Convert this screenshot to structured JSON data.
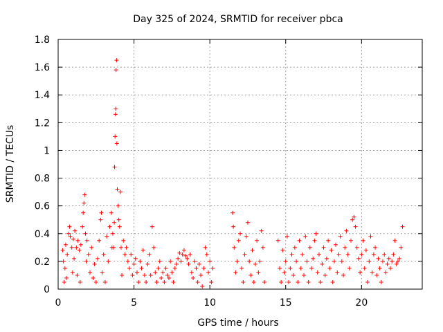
{
  "chart_data": {
    "type": "scatter",
    "title": "Day 325 of 2024, SRMTID for receiver pbca",
    "xlabel": "GPS time / hours",
    "ylabel": "SRMTID / TECUs",
    "xlim": [
      0,
      24
    ],
    "ylim": [
      0,
      1.8
    ],
    "xticks": [
      "0",
      "5",
      "10",
      "15",
      "20"
    ],
    "yticks": [
      "0",
      "0.2",
      "0.4",
      "0.6",
      "0.8",
      "1",
      "1.2",
      "1.4",
      "1.6",
      "1.8"
    ],
    "grid": true,
    "marker": "+",
    "color": "#ff0000",
    "series": [
      {
        "name": "pbca",
        "points": [
          [
            0.3,
            0.28
          ],
          [
            0.35,
            0.2
          ],
          [
            0.4,
            0.05
          ],
          [
            0.45,
            0.15
          ],
          [
            0.5,
            0.32
          ],
          [
            0.55,
            0.08
          ],
          [
            0.6,
            0.25
          ],
          [
            0.7,
            0.4
          ],
          [
            0.75,
            0.45
          ],
          [
            0.8,
            0.38
          ],
          [
            0.9,
            0.3
          ],
          [
            0.95,
            0.12
          ],
          [
            1.0,
            0.36
          ],
          [
            1.05,
            0.22
          ],
          [
            1.1,
            0.42
          ],
          [
            1.2,
            0.3
          ],
          [
            1.25,
            0.1
          ],
          [
            1.3,
            0.35
          ],
          [
            1.4,
            0.28
          ],
          [
            1.45,
            0.05
          ],
          [
            1.5,
            0.32
          ],
          [
            1.6,
            0.45
          ],
          [
            1.65,
            0.55
          ],
          [
            1.7,
            0.62
          ],
          [
            1.75,
            0.68
          ],
          [
            1.8,
            0.4
          ],
          [
            1.85,
            0.2
          ],
          [
            1.9,
            0.35
          ],
          [
            2.0,
            0.25
          ],
          [
            2.1,
            0.12
          ],
          [
            2.2,
            0.3
          ],
          [
            2.3,
            0.08
          ],
          [
            2.4,
            0.18
          ],
          [
            2.5,
            0.05
          ],
          [
            2.6,
            0.22
          ],
          [
            2.7,
            0.35
          ],
          [
            2.8,
            0.5
          ],
          [
            2.85,
            0.55
          ],
          [
            2.9,
            0.12
          ],
          [
            3.0,
            0.25
          ],
          [
            3.1,
            0.05
          ],
          [
            3.2,
            0.38
          ],
          [
            3.3,
            0.2
          ],
          [
            3.4,
            0.45
          ],
          [
            3.5,
            0.55
          ],
          [
            3.55,
            0.3
          ],
          [
            3.6,
            0.4
          ],
          [
            3.65,
            0.3
          ],
          [
            3.7,
            0.48
          ],
          [
            3.72,
            0.88
          ],
          [
            3.75,
            1.1
          ],
          [
            3.78,
            1.26
          ],
          [
            3.8,
            1.3
          ],
          [
            3.82,
            1.58
          ],
          [
            3.85,
            1.65
          ],
          [
            3.87,
            1.05
          ],
          [
            3.9,
            0.72
          ],
          [
            3.95,
            0.6
          ],
          [
            4.0,
            0.5
          ],
          [
            4.05,
            0.45
          ],
          [
            4.1,
            0.7
          ],
          [
            4.15,
            0.3
          ],
          [
            4.2,
            0.1
          ],
          [
            4.3,
            0.35
          ],
          [
            4.4,
            0.25
          ],
          [
            4.5,
            0.3
          ],
          [
            4.6,
            0.2
          ],
          [
            4.7,
            0.15
          ],
          [
            4.8,
            0.25
          ],
          [
            4.9,
            0.1
          ],
          [
            5.0,
            0.18
          ],
          [
            5.1,
            0.22
          ],
          [
            5.2,
            0.12
          ],
          [
            5.3,
            0.05
          ],
          [
            5.4,
            0.2
          ],
          [
            5.5,
            0.15
          ],
          [
            5.6,
            0.28
          ],
          [
            5.7,
            0.1
          ],
          [
            5.8,
            0.05
          ],
          [
            5.9,
            0.18
          ],
          [
            6.0,
            0.25
          ],
          [
            6.1,
            0.1
          ],
          [
            6.2,
            0.45
          ],
          [
            6.3,
            0.3
          ],
          [
            6.4,
            0.12
          ],
          [
            6.5,
            0.05
          ],
          [
            6.6,
            0.15
          ],
          [
            6.7,
            0.2
          ],
          [
            6.8,
            0.08
          ],
          [
            6.9,
            0.12
          ],
          [
            7.0,
            0.05
          ],
          [
            7.1,
            0.15
          ],
          [
            7.2,
            0.1
          ],
          [
            7.3,
            0.08
          ],
          [
            7.4,
            0.2
          ],
          [
            7.5,
            0.12
          ],
          [
            7.6,
            0.05
          ],
          [
            7.7,
            0.15
          ],
          [
            7.8,
            0.18
          ],
          [
            7.9,
            0.22
          ],
          [
            8.0,
            0.26
          ],
          [
            8.1,
            0.2
          ],
          [
            8.2,
            0.25
          ],
          [
            8.3,
            0.28
          ],
          [
            8.4,
            0.24
          ],
          [
            8.5,
            0.22
          ],
          [
            8.6,
            0.18
          ],
          [
            8.7,
            0.25
          ],
          [
            8.8,
            0.12
          ],
          [
            8.9,
            0.08
          ],
          [
            9.0,
            0.2
          ],
          [
            9.1,
            0.15
          ],
          [
            9.2,
            0.05
          ],
          [
            9.3,
            0.18
          ],
          [
            9.4,
            0.1
          ],
          [
            9.5,
            0.02
          ],
          [
            9.6,
            0.15
          ],
          [
            9.7,
            0.3
          ],
          [
            9.8,
            0.25
          ],
          [
            9.9,
            0.12
          ],
          [
            10.0,
            0.2
          ],
          [
            10.1,
            0.05
          ],
          [
            10.2,
            0.15
          ],
          [
            11.5,
            0.55
          ],
          [
            11.55,
            0.45
          ],
          [
            11.6,
            0.3
          ],
          [
            11.7,
            0.12
          ],
          [
            11.8,
            0.2
          ],
          [
            11.9,
            0.35
          ],
          [
            12.0,
            0.4
          ],
          [
            12.1,
            0.15
          ],
          [
            12.2,
            0.05
          ],
          [
            12.3,
            0.25
          ],
          [
            12.4,
            0.38
          ],
          [
            12.5,
            0.48
          ],
          [
            12.6,
            0.2
          ],
          [
            12.7,
            0.1
          ],
          [
            12.8,
            0.28
          ],
          [
            12.9,
            0.05
          ],
          [
            13.0,
            0.18
          ],
          [
            13.1,
            0.35
          ],
          [
            13.2,
            0.12
          ],
          [
            13.3,
            0.2
          ],
          [
            13.4,
            0.42
          ],
          [
            13.5,
            0.3
          ],
          [
            13.6,
            0.05
          ],
          [
            14.5,
            0.35
          ],
          [
            14.6,
            0.15
          ],
          [
            14.7,
            0.05
          ],
          [
            14.8,
            0.28
          ],
          [
            14.9,
            0.12
          ],
          [
            15.0,
            0.2
          ],
          [
            15.1,
            0.38
          ],
          [
            15.2,
            0.05
          ],
          [
            15.3,
            0.15
          ],
          [
            15.4,
            0.25
          ],
          [
            15.5,
            0.1
          ],
          [
            15.6,
            0.3
          ],
          [
            15.7,
            0.2
          ],
          [
            15.8,
            0.05
          ],
          [
            15.9,
            0.35
          ],
          [
            16.0,
            0.15
          ],
          [
            16.1,
            0.25
          ],
          [
            16.2,
            0.1
          ],
          [
            16.3,
            0.38
          ],
          [
            16.4,
            0.2
          ],
          [
            16.5,
            0.05
          ],
          [
            16.6,
            0.3
          ],
          [
            16.7,
            0.15
          ],
          [
            16.8,
            0.22
          ],
          [
            16.9,
            0.35
          ],
          [
            17.0,
            0.4
          ],
          [
            17.1,
            0.12
          ],
          [
            17.2,
            0.25
          ],
          [
            17.3,
            0.05
          ],
          [
            17.4,
            0.18
          ],
          [
            17.5,
            0.3
          ],
          [
            17.6,
            0.1
          ],
          [
            17.7,
            0.22
          ],
          [
            17.8,
            0.35
          ],
          [
            17.9,
            0.15
          ],
          [
            18.0,
            0.28
          ],
          [
            18.1,
            0.05
          ],
          [
            18.2,
            0.2
          ],
          [
            18.3,
            0.32
          ],
          [
            18.4,
            0.12
          ],
          [
            18.5,
            0.25
          ],
          [
            18.6,
            0.38
          ],
          [
            18.7,
            0.2
          ],
          [
            18.8,
            0.1
          ],
          [
            18.9,
            0.3
          ],
          [
            19.0,
            0.42
          ],
          [
            19.1,
            0.25
          ],
          [
            19.2,
            0.15
          ],
          [
            19.3,
            0.35
          ],
          [
            19.4,
            0.5
          ],
          [
            19.5,
            0.52
          ],
          [
            19.6,
            0.45
          ],
          [
            19.7,
            0.3
          ],
          [
            19.8,
            0.22
          ],
          [
            19.9,
            0.12
          ],
          [
            20.0,
            0.25
          ],
          [
            20.1,
            0.35
          ],
          [
            20.2,
            0.15
          ],
          [
            20.3,
            0.28
          ],
          [
            20.4,
            0.05
          ],
          [
            20.5,
            0.2
          ],
          [
            20.6,
            0.38
          ],
          [
            20.7,
            0.12
          ],
          [
            20.8,
            0.25
          ],
          [
            20.9,
            0.3
          ],
          [
            21.0,
            0.1
          ],
          [
            21.1,
            0.22
          ],
          [
            21.2,
            0.15
          ],
          [
            21.3,
            0.05
          ],
          [
            21.4,
            0.2
          ],
          [
            21.5,
            0.25
          ],
          [
            21.6,
            0.12
          ],
          [
            21.7,
            0.18
          ],
          [
            21.8,
            0.22
          ],
          [
            21.9,
            0.15
          ],
          [
            22.0,
            0.2
          ],
          [
            22.1,
            0.25
          ],
          [
            22.2,
            0.35
          ],
          [
            22.3,
            0.18
          ],
          [
            22.4,
            0.2
          ],
          [
            22.5,
            0.22
          ],
          [
            22.6,
            0.3
          ],
          [
            22.7,
            0.45
          ]
        ]
      }
    ]
  }
}
